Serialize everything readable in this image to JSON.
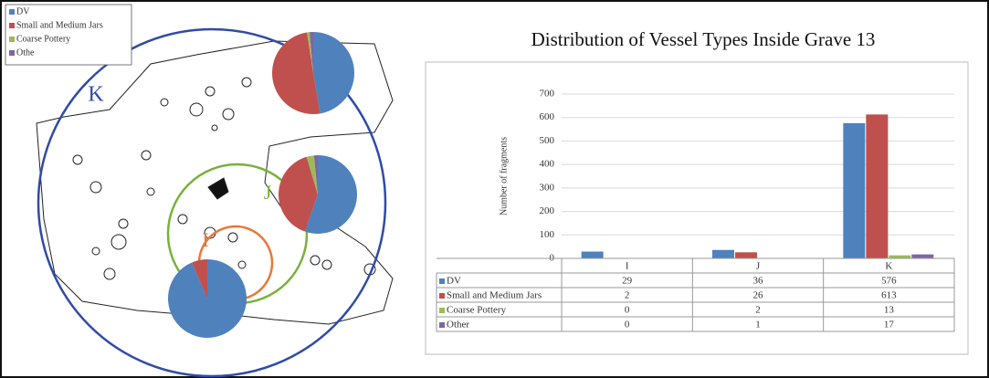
{
  "chart_data": {
    "type": "bar",
    "title": "Distribution of Vessel Types Inside Grave 13",
    "ylabel": "Number of fragments",
    "categories": [
      "I",
      "J",
      "K"
    ],
    "series": [
      {
        "name": "DV",
        "color": "#4f81bd",
        "values": [
          29,
          36,
          576
        ]
      },
      {
        "name": "Small and Medium Jars",
        "color": "#c0504d",
        "values": [
          2,
          26,
          613
        ]
      },
      {
        "name": "Coarse Pottery",
        "color": "#9bbb59",
        "values": [
          0,
          2,
          13
        ]
      },
      {
        "name": "Other",
        "color": "#8064a2",
        "values": [
          0,
          1,
          17
        ]
      }
    ],
    "ylim": [
      0,
      700
    ],
    "yticks": [
      0,
      100,
      200,
      300,
      400,
      500,
      600,
      700
    ],
    "grid": true
  },
  "map": {
    "legend": [
      "DV",
      "Small and Medium Jars",
      "Coarse Pottery",
      "Othe"
    ],
    "areas": [
      {
        "label": "K",
        "color": "#2f4ba8"
      },
      {
        "label": "J",
        "color": "#7ab13c"
      },
      {
        "label": "I",
        "color": "#e8773a"
      }
    ]
  }
}
